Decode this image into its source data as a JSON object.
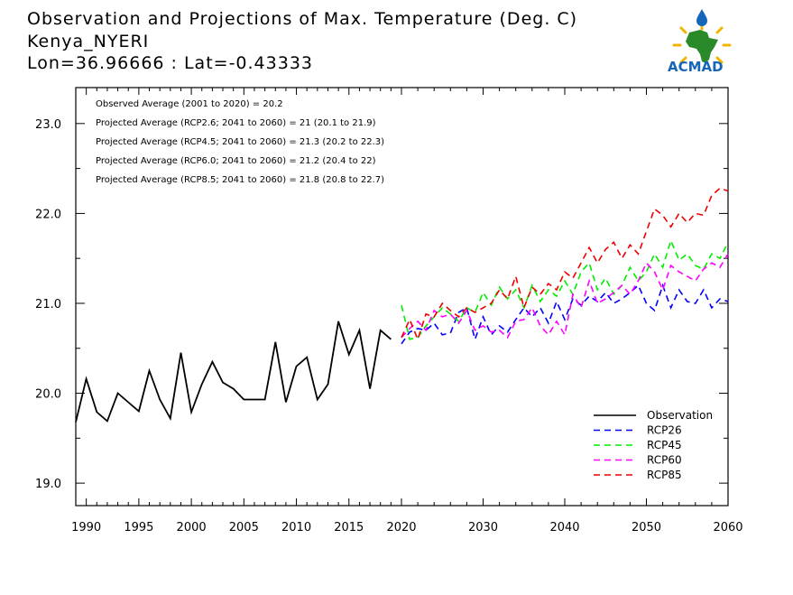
{
  "header": {
    "title_line1": "Observation and Projections of Max. Temperature (Deg. C)",
    "title_line2": "Kenya_NYERI",
    "title_line3": "Lon=36.96666 : Lat=-0.43333"
  },
  "logo": {
    "text": "ACMAD"
  },
  "chart_data": {
    "type": "line",
    "title": "Observation and Projections of Max. Temperature (Deg. C)",
    "xlim": [
      1989,
      2060
    ],
    "ylim": [
      18.75,
      23.4
    ],
    "x_tick_labels": [
      "1990",
      "1995",
      "2000",
      "2005",
      "2010",
      "2015",
      "2020",
      "2030",
      "2040",
      "2050",
      "2060"
    ],
    "x_tick_values": [
      1990,
      1995,
      2000,
      2005,
      2010,
      2015,
      2020,
      2030,
      2040,
      2050,
      2060
    ],
    "y_tick_labels": [
      "19.0",
      "20.0",
      "21.0",
      "22.0",
      "23.0"
    ],
    "y_tick_values": [
      19.0,
      20.0,
      21.0,
      22.0,
      23.0
    ],
    "annotations": [
      "Observed Average (2001 to 2020) = 20.2",
      "Projected Average (RCP2.6; 2041 to 2060) = 21 (20.1 to 21.9)",
      "Projected Average (RCP4.5; 2041 to 2060) = 21.3 (20.2 to 22.3)",
      "Projected Average (RCP6.0; 2041 to 2060) = 21.2 (20.4 to 22)",
      "Projected Average (RCP8.5; 2041 to 2060) = 21.8 (20.8 to 22.7)"
    ],
    "legend_position": "bottom-right",
    "series": [
      {
        "name": "Observation",
        "color": "#000000",
        "dashed": false,
        "x": [
          1989,
          1990,
          1991,
          1992,
          1993,
          1994,
          1995,
          1996,
          1997,
          1998,
          1999,
          2000,
          2001,
          2002,
          2003,
          2004,
          2005,
          2006,
          2007,
          2008,
          2009,
          2010,
          2011,
          2012,
          2013,
          2014,
          2015,
          2016,
          2017,
          2018,
          2019
        ],
        "values": [
          19.68,
          20.16,
          19.79,
          19.69,
          20.0,
          19.9,
          19.8,
          20.25,
          19.93,
          19.72,
          20.45,
          19.79,
          20.1,
          20.35,
          20.12,
          20.05,
          19.93,
          19.93,
          19.93,
          20.57,
          19.9,
          20.3,
          20.4,
          19.93,
          20.1,
          20.8,
          20.43,
          20.7,
          20.05,
          20.7,
          20.6
        ]
      },
      {
        "name": "RCP26",
        "color": "#0000ff",
        "dashed": true,
        "x": [
          2020,
          2021,
          2022,
          2023,
          2024,
          2025,
          2026,
          2027,
          2028,
          2029,
          2030,
          2031,
          2032,
          2033,
          2034,
          2035,
          2036,
          2037,
          2038,
          2039,
          2040,
          2041,
          2042,
          2043,
          2044,
          2045,
          2046,
          2047,
          2048,
          2049,
          2050,
          2051,
          2052,
          2053,
          2054,
          2055,
          2056,
          2057,
          2058,
          2059,
          2060
        ],
        "values": [
          20.55,
          20.68,
          20.72,
          20.7,
          20.78,
          20.65,
          20.67,
          20.9,
          20.95,
          20.6,
          20.85,
          20.65,
          20.75,
          20.68,
          20.82,
          20.95,
          20.85,
          20.95,
          20.78,
          21.02,
          20.82,
          21.05,
          20.98,
          21.08,
          21.02,
          21.12,
          21.0,
          21.05,
          21.12,
          21.2,
          21.0,
          20.92,
          21.2,
          20.95,
          21.15,
          21.02,
          21.0,
          21.15,
          20.95,
          21.05,
          21.02
        ]
      },
      {
        "name": "RCP45",
        "color": "#00ee00",
        "dashed": true,
        "x": [
          2020,
          2021,
          2022,
          2023,
          2024,
          2025,
          2026,
          2027,
          2028,
          2029,
          2030,
          2031,
          2032,
          2033,
          2034,
          2035,
          2036,
          2037,
          2038,
          2039,
          2040,
          2041,
          2042,
          2043,
          2044,
          2045,
          2046,
          2047,
          2048,
          2049,
          2050,
          2051,
          2052,
          2053,
          2054,
          2055,
          2056,
          2057,
          2058,
          2059,
          2060
        ],
        "values": [
          20.98,
          20.6,
          20.62,
          20.75,
          20.85,
          20.95,
          20.88,
          20.8,
          20.95,
          20.9,
          21.12,
          20.98,
          21.18,
          21.05,
          21.15,
          20.95,
          21.2,
          21.02,
          21.15,
          21.08,
          21.25,
          21.1,
          21.35,
          21.45,
          21.15,
          21.28,
          21.1,
          21.2,
          21.4,
          21.25,
          21.35,
          21.55,
          21.4,
          21.7,
          21.48,
          21.55,
          21.42,
          21.38,
          21.55,
          21.5,
          21.68
        ]
      },
      {
        "name": "RCP60",
        "color": "#ff00ff",
        "dashed": true,
        "x": [
          2020,
          2021,
          2022,
          2023,
          2024,
          2025,
          2026,
          2027,
          2028,
          2029,
          2030,
          2031,
          2032,
          2033,
          2034,
          2035,
          2036,
          2037,
          2038,
          2039,
          2040,
          2041,
          2042,
          2043,
          2044,
          2045,
          2046,
          2047,
          2048,
          2049,
          2050,
          2051,
          2052,
          2053,
          2054,
          2055,
          2056,
          2057,
          2058,
          2059,
          2060
        ],
        "values": [
          20.62,
          20.72,
          20.8,
          20.7,
          20.92,
          20.85,
          20.88,
          20.78,
          20.92,
          20.7,
          20.75,
          20.68,
          20.7,
          20.62,
          20.8,
          20.82,
          20.95,
          20.75,
          20.65,
          20.8,
          20.65,
          21.1,
          20.95,
          21.25,
          21.0,
          21.05,
          21.12,
          21.2,
          21.1,
          21.25,
          21.45,
          21.35,
          21.15,
          21.42,
          21.35,
          21.3,
          21.25,
          21.38,
          21.45,
          21.4,
          21.55
        ]
      },
      {
        "name": "RCP85",
        "color": "#ee0000",
        "dashed": true,
        "x": [
          2020,
          2021,
          2022,
          2023,
          2024,
          2025,
          2026,
          2027,
          2028,
          2029,
          2030,
          2031,
          2032,
          2033,
          2034,
          2035,
          2036,
          2037,
          2038,
          2039,
          2040,
          2041,
          2042,
          2043,
          2044,
          2045,
          2046,
          2047,
          2048,
          2049,
          2050,
          2051,
          2052,
          2053,
          2054,
          2055,
          2056,
          2057,
          2058,
          2059,
          2060
        ],
        "values": [
          20.62,
          20.82,
          20.6,
          20.88,
          20.85,
          21.0,
          20.92,
          20.85,
          20.95,
          20.9,
          20.95,
          21.0,
          21.15,
          21.05,
          21.3,
          20.95,
          21.18,
          21.1,
          21.22,
          21.15,
          21.35,
          21.28,
          21.45,
          21.62,
          21.45,
          21.6,
          21.68,
          21.5,
          21.65,
          21.55,
          21.8,
          22.05,
          21.98,
          21.85,
          22.0,
          21.9,
          22.0,
          21.98,
          22.2,
          22.28,
          22.25
        ]
      }
    ]
  }
}
